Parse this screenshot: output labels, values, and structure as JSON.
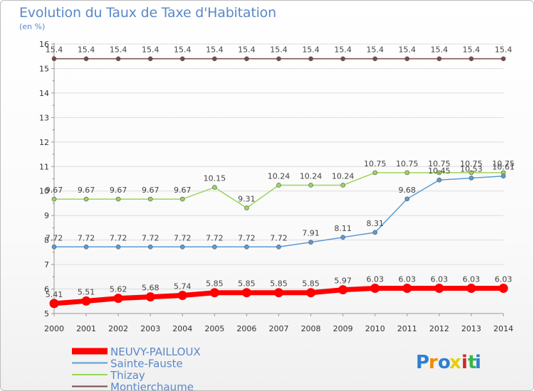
{
  "header": {
    "title": "Evolution du Taux de Taxe d'Habitation",
    "subtitle": "(en %)"
  },
  "logo": {
    "text": "Proxiti"
  },
  "colors": {
    "grid": "#dcdcdc",
    "axis": "#999999",
    "text_accent": "#5a88c8"
  },
  "chart_data": {
    "type": "line",
    "title": "Evolution du Taux de Taxe d'Habitation",
    "subtitle": "(en %)",
    "x": [
      2000,
      2001,
      2002,
      2003,
      2004,
      2005,
      2006,
      2007,
      2008,
      2009,
      2010,
      2011,
      2012,
      2013,
      2014
    ],
    "ylim": [
      5,
      16
    ],
    "yticks": [
      5,
      6,
      7,
      8,
      9,
      10,
      11,
      12,
      13,
      14,
      15,
      16
    ],
    "grid": "horizontal",
    "legend_position": "bottom-left",
    "series": [
      {
        "name": "NEUVY-PAILLOUX",
        "color": "#ff0000",
        "values": [
          5.41,
          5.51,
          5.62,
          5.68,
          5.74,
          5.85,
          5.85,
          5.85,
          5.85,
          5.97,
          6.03,
          6.03,
          6.03,
          6.03,
          6.03
        ]
      },
      {
        "name": "Sainte-Fauste",
        "color": "#5b9bd5",
        "values": [
          7.72,
          7.72,
          7.72,
          7.72,
          7.72,
          7.72,
          7.72,
          7.72,
          7.91,
          8.11,
          8.31,
          9.68,
          10.45,
          10.53,
          10.61
        ]
      },
      {
        "name": "Thizay",
        "color": "#99d65c",
        "values": [
          9.67,
          9.67,
          9.67,
          9.67,
          9.67,
          10.15,
          9.31,
          10.24,
          10.24,
          10.24,
          10.75,
          10.75,
          10.75,
          10.75,
          10.75
        ]
      },
      {
        "name": "Montierchaume",
        "color": "#7a4a4a",
        "values": [
          15.4,
          15.4,
          15.4,
          15.4,
          15.4,
          15.4,
          15.4,
          15.4,
          15.4,
          15.4,
          15.4,
          15.4,
          15.4,
          15.4,
          15.4
        ]
      }
    ],
    "data_labels": [
      [
        "5.41",
        "5.51",
        "5.62",
        "5.68",
        "5.74",
        "5.85",
        "5.85",
        "5.85",
        "5.85",
        "5.97",
        "6.03",
        "6.03",
        "6.03",
        "6.03",
        "6.03"
      ],
      [
        "7.72",
        "7.72",
        "7.72",
        "7.72",
        "7.72",
        "7.72",
        "7.72",
        "7.72",
        "7.91",
        "8.11",
        "8.31",
        "9.68",
        "10.45",
        "10.53",
        "10.61"
      ],
      [
        "9.67",
        "9.67",
        "9.67",
        "9.67",
        "9.67",
        "10.15",
        "9.31",
        "10.24",
        "10.24",
        "10.24",
        "10.75",
        "10.75",
        "10.75",
        "10.75",
        "10.75"
      ],
      [
        "15.4",
        "15.4",
        "15.4",
        "15.4",
        "15.4",
        "15.4",
        "15.4",
        "15.4",
        "15.4",
        "15.4",
        "15.4",
        "15.4",
        "15.4",
        "15.4",
        "15.4"
      ]
    ]
  }
}
